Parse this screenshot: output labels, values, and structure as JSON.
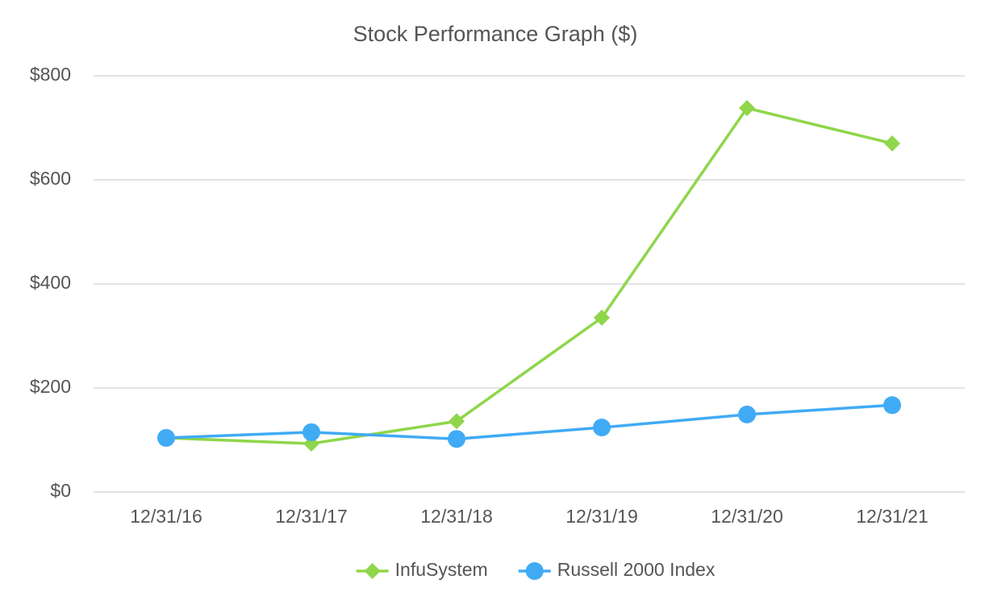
{
  "chart_data": {
    "type": "line",
    "title": "Stock Performance Graph ($)",
    "categories": [
      "12/31/16",
      "12/31/17",
      "12/31/18",
      "12/31/19",
      "12/31/20",
      "12/31/21"
    ],
    "series": [
      {
        "name": "InfuSystem",
        "color": "#8fd64b",
        "marker": "diamond",
        "values": [
          104,
          93,
          136,
          335,
          738,
          670
        ]
      },
      {
        "name": "Russell 2000 Index",
        "color": "#40abf4",
        "marker": "circle",
        "values": [
          104,
          115,
          102,
          124,
          149,
          167
        ]
      }
    ],
    "ylim": [
      0,
      800
    ],
    "yticks": [
      {
        "value": 0,
        "label": "$0"
      },
      {
        "value": 200,
        "label": "$200"
      },
      {
        "value": 400,
        "label": "$400"
      },
      {
        "value": 600,
        "label": "$600"
      },
      {
        "value": 800,
        "label": "$800"
      }
    ],
    "grid": true,
    "legend": "bottom"
  }
}
